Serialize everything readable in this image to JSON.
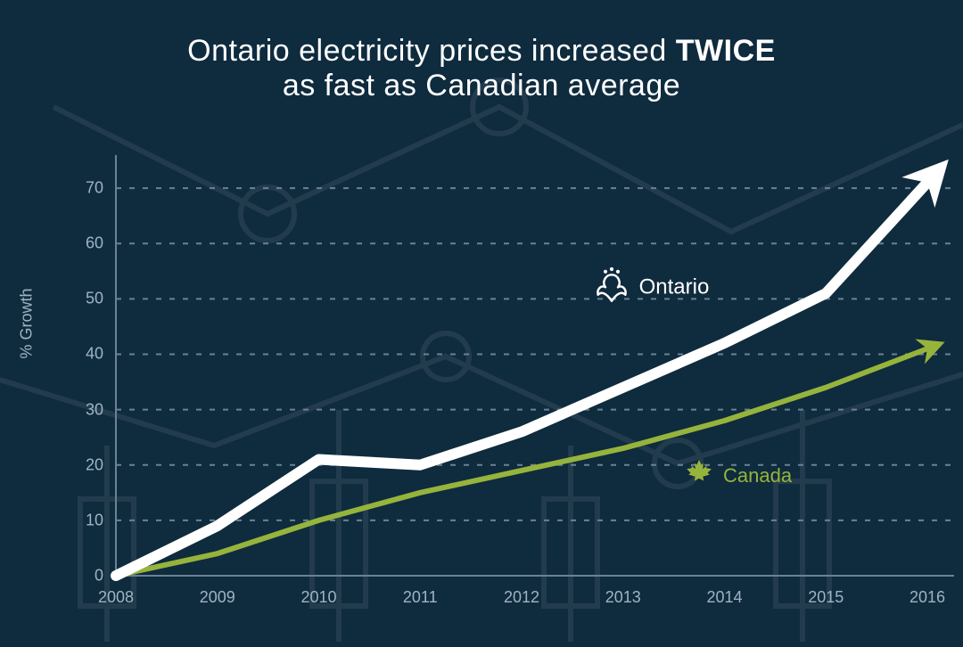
{
  "title": {
    "line1_pre": "Ontario electricity prices increased ",
    "line1_bold": "TWICE",
    "line2": "as fast as Canadian average",
    "fontsize": 34,
    "color": "#ffffff"
  },
  "background": {
    "color": "#0f2b3e",
    "watermark_opacity": 0.08,
    "watermark_stroke": "#ffffff"
  },
  "chart": {
    "type": "line",
    "ylabel": "% Growth",
    "ylabel_fontsize": 18,
    "ylabel_color": "#9fb4c2",
    "xlim": [
      2008,
      2016
    ],
    "ylim": [
      0,
      75
    ],
    "yticks": [
      0,
      10,
      20,
      30,
      40,
      50,
      60,
      70
    ],
    "xticks": [
      2008,
      2009,
      2010,
      2011,
      2012,
      2013,
      2014,
      2015,
      2016
    ],
    "tick_fontsize": 18,
    "tick_color": "#9fb4c2",
    "grid": {
      "style": "dashed",
      "color": "#6b8292",
      "dash": "6 9",
      "width": 2
    },
    "axis_line_color": "#6b8292",
    "axis_line_width": 2,
    "series": {
      "ontario": {
        "label": "Ontario",
        "color": "#ffffff",
        "stroke_width": 12,
        "arrowhead": true,
        "label_fontsize": 24,
        "label_pos": {
          "x": 2012.7,
          "y": 52
        },
        "x": [
          2008,
          2009,
          2010,
          2011,
          2012,
          2013,
          2014,
          2015,
          2016
        ],
        "y": [
          0,
          9,
          21,
          20,
          26,
          34,
          42,
          51,
          71
        ]
      },
      "canada": {
        "label": "Canada",
        "color": "#96b43c",
        "stroke_width": 6,
        "arrowhead": true,
        "label_fontsize": 22,
        "label_pos": {
          "x": 2013.6,
          "y": 18
        },
        "x": [
          2008,
          2009,
          2010,
          2011,
          2012,
          2013,
          2014,
          2015,
          2016
        ],
        "y": [
          0,
          4,
          10,
          15,
          19,
          23,
          28,
          34,
          41
        ]
      }
    }
  }
}
